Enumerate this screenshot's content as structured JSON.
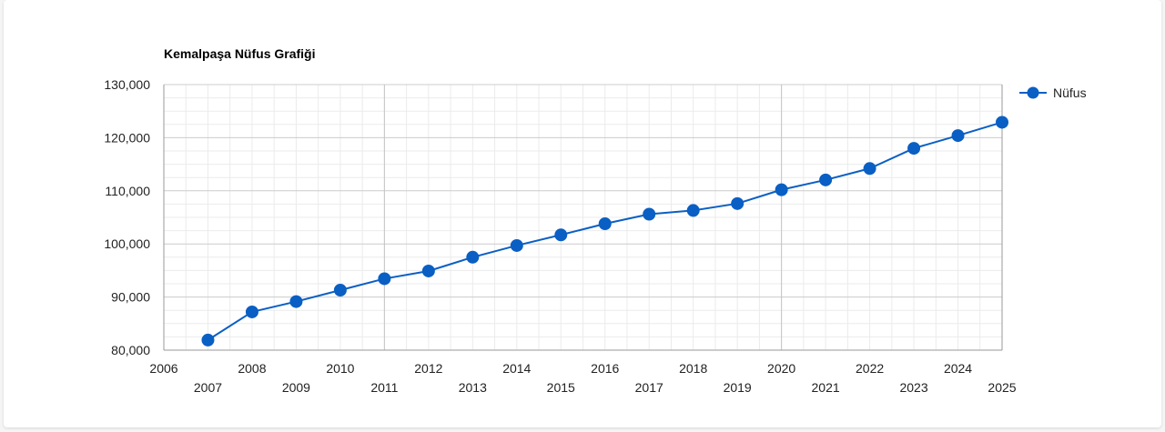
{
  "chart_data": {
    "type": "line",
    "title": "Kemalpaşa Nüfus Grafiği",
    "xlabel": "",
    "ylabel": "",
    "xlim": [
      2006,
      2025
    ],
    "ylim": [
      80000,
      130000
    ],
    "y_ticks": [
      "80,000",
      "90,000",
      "100,000",
      "110,000",
      "120,000",
      "130,000"
    ],
    "x_ticks": [
      "2006",
      "2007",
      "2008",
      "2009",
      "2010",
      "2011",
      "2012",
      "2013",
      "2014",
      "2015",
      "2016",
      "2017",
      "2018",
      "2019",
      "2020",
      "2021",
      "2022",
      "2023",
      "2024",
      "2025"
    ],
    "grid": true,
    "legend_position": "right",
    "series": [
      {
        "name": "Nüfus",
        "color": "#0a5fc4",
        "x": [
          2007,
          2008,
          2009,
          2010,
          2011,
          2012,
          2013,
          2014,
          2015,
          2016,
          2017,
          2018,
          2019,
          2020,
          2021,
          2022,
          2023,
          2024,
          2025
        ],
        "values": [
          81900,
          87200,
          89150,
          91300,
          93450,
          94900,
          97500,
          99700,
          101700,
          103800,
          105600,
          106300,
          107600,
          110200,
          112050,
          114200,
          118000,
          120400,
          122900
        ]
      }
    ]
  }
}
